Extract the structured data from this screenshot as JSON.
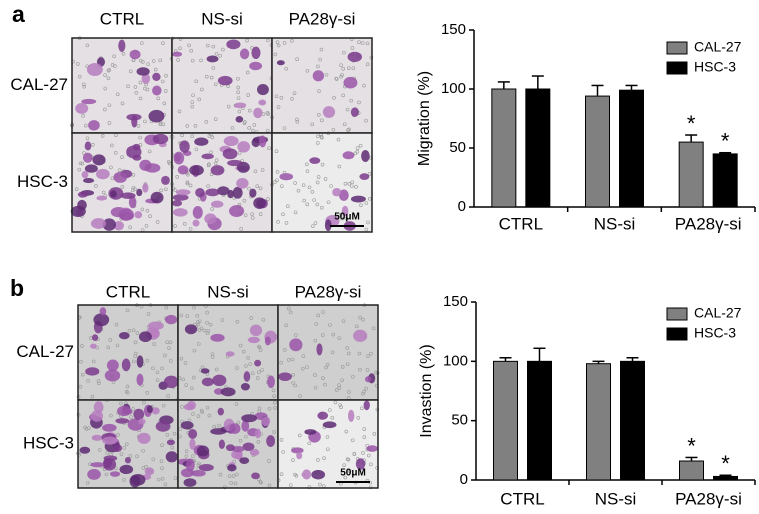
{
  "panels": [
    {
      "letter": "a",
      "columns": [
        "CTRL",
        "NS-si",
        "PA28γ-si"
      ],
      "rows": [
        "CAL-27",
        "HSC-3"
      ],
      "scale_bar": "50μM"
    },
    {
      "letter": "b",
      "columns": [
        "CTRL",
        "NS-si",
        "PA28γ-si"
      ],
      "rows": [
        "CAL-27",
        "HSC-3"
      ],
      "scale_bar": "50μM"
    }
  ],
  "chart_data": [
    {
      "type": "bar",
      "y_label": "Migration (%)",
      "categories": [
        "CTRL",
        "NS-si",
        "PA28γ-si"
      ],
      "series": [
        {
          "name": "CAL-27",
          "color": "#808080",
          "values": [
            100,
            94,
            55
          ],
          "errors": [
            6,
            9,
            6
          ],
          "significance": [
            null,
            null,
            "*"
          ]
        },
        {
          "name": "HSC-3",
          "color": "#000000",
          "values": [
            100,
            99,
            45
          ],
          "errors": [
            11,
            4,
            1
          ],
          "significance": [
            null,
            null,
            "*"
          ]
        }
      ],
      "ylim": [
        0,
        150
      ],
      "yticks": [
        0,
        50,
        100,
        150
      ],
      "legend": "top-right"
    },
    {
      "type": "bar",
      "y_label": "Invastion (%)",
      "categories": [
        "CTRL",
        "NS-si",
        "PA28γ-si"
      ],
      "series": [
        {
          "name": "CAL-27",
          "color": "#808080",
          "values": [
            100,
            98,
            16
          ],
          "errors": [
            3,
            2,
            3
          ],
          "significance": [
            null,
            null,
            "*"
          ]
        },
        {
          "name": "HSC-3",
          "color": "#000000",
          "values": [
            100,
            100,
            3
          ],
          "errors": [
            11,
            3,
            1
          ],
          "significance": [
            null,
            null,
            "*"
          ]
        }
      ],
      "ylim": [
        0,
        150
      ],
      "yticks": [
        0,
        50,
        100,
        150
      ],
      "legend": "top-right"
    }
  ]
}
